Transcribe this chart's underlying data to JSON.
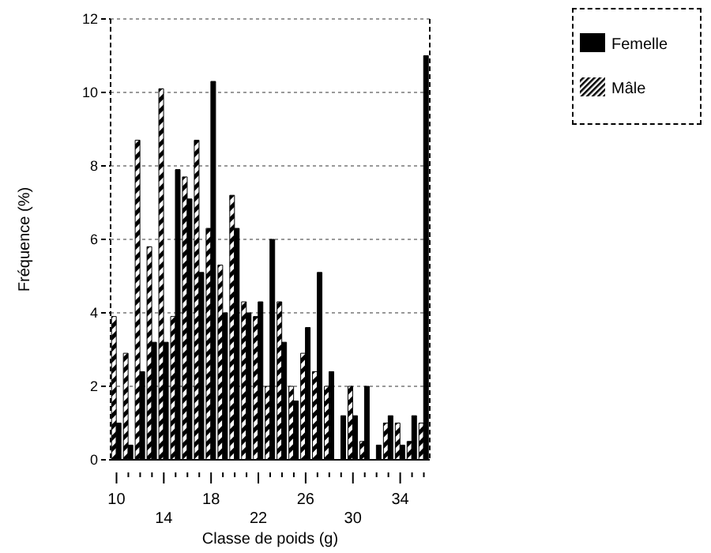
{
  "chart_data": {
    "type": "bar",
    "xlabel": "Classe de poids (g)",
    "ylabel": "Fréquence (%)",
    "categories": [
      "10",
      null,
      null,
      null,
      "14",
      null,
      null,
      null,
      "18",
      null,
      null,
      null,
      "22",
      null,
      null,
      null,
      "26",
      null,
      null,
      null,
      "30",
      null,
      null,
      null,
      "34",
      null,
      null
    ],
    "series": [
      {
        "name": "Mâle",
        "color": "#000000",
        "values": [
          3.9,
          2.9,
          8.7,
          5.8,
          10.1,
          3.9,
          7.7,
          8.7,
          6.3,
          5.3,
          7.2,
          4.3,
          3.9,
          2.0,
          4.3,
          2.0,
          2.9,
          2.4,
          2.0,
          0,
          2.0,
          0.5,
          0,
          1.0,
          1.0,
          0.5,
          1.0
        ]
      },
      {
        "name": "Femelle",
        "color": "#000000",
        "values": [
          1.0,
          0.4,
          2.4,
          3.2,
          3.2,
          7.9,
          7.1,
          5.1,
          10.3,
          4.0,
          6.3,
          4.0,
          4.3,
          6.0,
          3.2,
          1.6,
          3.6,
          5.1,
          2.4,
          1.2,
          1.2,
          2.0,
          0.4,
          1.2,
          0.4,
          1.2,
          11.0
        ]
      }
    ],
    "ylim": [
      0,
      12
    ],
    "yticks": [
      0,
      2,
      4,
      6,
      8,
      10,
      12
    ],
    "grid": "y",
    "legend": "top right"
  }
}
